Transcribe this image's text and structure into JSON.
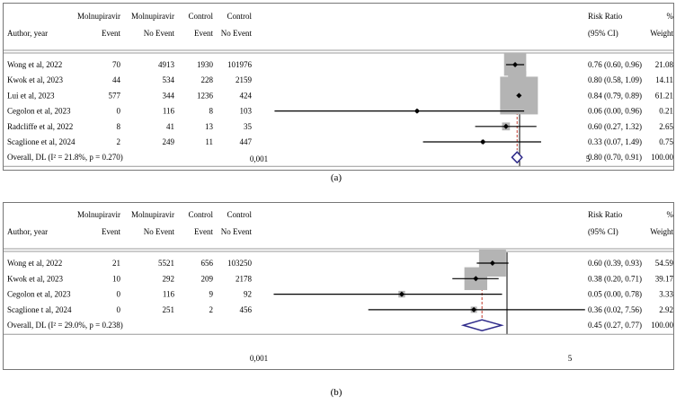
{
  "panels": [
    {
      "id": "a",
      "caption": "(a)",
      "headers": {
        "author": "Author, year",
        "col1_top": "Molnupiravir",
        "col1_bot": "Event",
        "col2_top": "Molnupiravir",
        "col2_bot": "No Event",
        "col3_top": "Control",
        "col3_bot": "Event",
        "col4_top": "Control",
        "col4_bot": "No Event",
        "rr_top": "Risk Ratio",
        "rr_bot": "(95% CI)",
        "w_top": "%",
        "w_bot": "Weight"
      },
      "rows": [
        {
          "author": "Wong et al, 2022",
          "c1": "70",
          "c2": "4913",
          "c3": "1930",
          "c4": "101976",
          "rr": "0.76 (0.60, 0.96)",
          "w": "21.08"
        },
        {
          "author": "Kwok et al, 2023",
          "c1": "44",
          "c2": "534",
          "c3": "228",
          "c4": "2159",
          "rr": "0.80 (0.58, 1.09)",
          "w": "14.11"
        },
        {
          "author": "Lui et al, 2023",
          "c1": "577",
          "c2": "344",
          "c3": "1236",
          "c4": "424",
          "rr": "0.84 (0.79, 0.89)",
          "w": "61.21"
        },
        {
          "author": "Cegolon et al, 2023",
          "c1": "0",
          "c2": "116",
          "c3": "8",
          "c4": "103",
          "rr": "0.06 (0.00, 0.96)",
          "w": "0.21"
        },
        {
          "author": "Radcliffe et al, 2022",
          "c1": "8",
          "c2": "41",
          "c3": "13",
          "c4": "35",
          "rr": "0.60 (0.27, 1.32)",
          "w": "2.65"
        },
        {
          "author": "Scaglione et al, 2024",
          "c1": "2",
          "c2": "249",
          "c3": "11",
          "c4": "447",
          "rr": "0.33 (0.07, 1.49)",
          "w": "0.75"
        }
      ],
      "overall": {
        "label": "Overall, DL (I² = 21.8%, p = 0.270)",
        "rr": "0.80 (0.70, 0.91)",
        "w": "100.00"
      },
      "ticks": [
        "0,001",
        "5"
      ]
    },
    {
      "id": "b",
      "caption": "(b)",
      "headers": {
        "author": "Author, year",
        "col1_top": "Molnupiravir",
        "col1_bot": "Event",
        "col2_top": "Molnupiravir",
        "col2_bot": "No Event",
        "col3_top": "Control",
        "col3_bot": "Event",
        "col4_top": "Control",
        "col4_bot": "No Event",
        "rr_top": "Risk Ratio",
        "rr_bot": "(95% CI)",
        "w_top": "%",
        "w_bot": "Weight"
      },
      "rows": [
        {
          "author": "Wong et al, 2022",
          "c1": "21",
          "c2": "5521",
          "c3": "656",
          "c4": "103250",
          "rr": "0.60 (0.39, 0.93)",
          "w": "54.59"
        },
        {
          "author": "Kwok et al, 2023",
          "c1": "10",
          "c2": "292",
          "c3": "209",
          "c4": "2178",
          "rr": "0.38 (0.20, 0.71)",
          "w": "39.17"
        },
        {
          "author": "Cegolon et al, 2023",
          "c1": "0",
          "c2": "116",
          "c3": "9",
          "c4": "92",
          "rr": "0.05 (0.00, 0.78)",
          "w": "3.33"
        },
        {
          "author": "Scaglione t al, 2024",
          "c1": "0",
          "c2": "251",
          "c3": "2",
          "c4": "456",
          "rr": "0.36 (0.02, 7.56)",
          "w": "2.92"
        }
      ],
      "overall": {
        "label": "Overall, DL (I² = 29.0%, p = 0.238)",
        "rr": "0.45 (0.27, 0.77)",
        "w": "100.00"
      },
      "ticks": [
        "0,001",
        "5"
      ]
    }
  ],
  "colors": {
    "box": "#b4b4b4",
    "ci": "#000000",
    "diamond": "#2e2a8a",
    "pooled_line": "#c0392b",
    "null_line": "#000000"
  },
  "chart_data": [
    {
      "type": "forest",
      "scale": "log",
      "xlim": [
        0.001,
        5
      ],
      "null_value": 1,
      "studies": [
        {
          "name": "Wong et al, 2022",
          "rr": 0.76,
          "lo": 0.6,
          "hi": 0.96,
          "weight": 21.08
        },
        {
          "name": "Kwok et al, 2023",
          "rr": 0.8,
          "lo": 0.58,
          "hi": 1.09,
          "weight": 14.11
        },
        {
          "name": "Lui et al, 2023",
          "rr": 0.84,
          "lo": 0.79,
          "hi": 0.89,
          "weight": 61.21
        },
        {
          "name": "Cegolon et al, 2023",
          "rr": 0.06,
          "lo": 0.0,
          "hi": 0.96,
          "weight": 0.21
        },
        {
          "name": "Radcliffe et al, 2022",
          "rr": 0.6,
          "lo": 0.27,
          "hi": 1.32,
          "weight": 2.65
        },
        {
          "name": "Scaglione et al, 2024",
          "rr": 0.33,
          "lo": 0.07,
          "hi": 1.49,
          "weight": 0.75
        }
      ],
      "pooled": {
        "rr": 0.8,
        "lo": 0.7,
        "hi": 0.91
      }
    },
    {
      "type": "forest",
      "scale": "log",
      "xlim": [
        0.001,
        5
      ],
      "null_value": 1,
      "studies": [
        {
          "name": "Wong et al, 2022",
          "rr": 0.6,
          "lo": 0.39,
          "hi": 0.93,
          "weight": 54.59
        },
        {
          "name": "Kwok et al, 2023",
          "rr": 0.38,
          "lo": 0.2,
          "hi": 0.71,
          "weight": 39.17
        },
        {
          "name": "Cegolon et al, 2023",
          "rr": 0.05,
          "lo": 0.0,
          "hi": 0.78,
          "weight": 3.33
        },
        {
          "name": "Scaglione t al, 2024",
          "rr": 0.36,
          "lo": 0.02,
          "hi": 7.56,
          "weight": 2.92
        }
      ],
      "pooled": {
        "rr": 0.45,
        "lo": 0.27,
        "hi": 0.77
      }
    }
  ]
}
